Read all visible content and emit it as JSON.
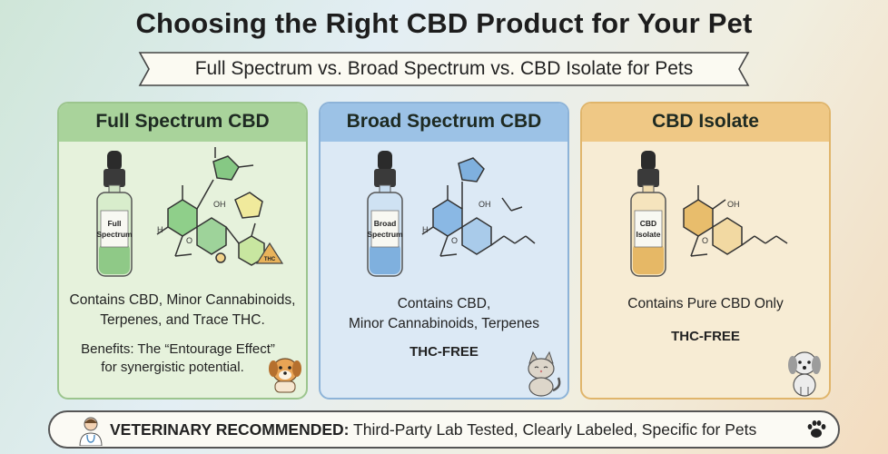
{
  "header": {
    "title": "Choosing the Right CBD Product for Your Pet",
    "subtitle": "Full Spectrum vs. Broad Spectrum vs. CBD Isolate for Pets"
  },
  "cards": [
    {
      "title": "Full Spectrum CBD",
      "bottle_label_1": "Full",
      "bottle_label_2": "Spectrum",
      "desc_1": "Contains CBD, Minor Cannabinoids,",
      "desc_2": "Terpenes, and Trace THC.",
      "benefit_1": "Benefits: The “Entourage Effect”",
      "benefit_2": "for synergistic potential.",
      "warning_badge": "THC",
      "pet": "dog-icon",
      "color": "#a9d39b"
    },
    {
      "title": "Broad Spectrum CBD",
      "bottle_label_1": "Broad",
      "bottle_label_2": "Spectrum",
      "desc_1": "Contains CBD,",
      "desc_2": "Minor Cannabinoids, Terpenes",
      "badge": "THC-FREE",
      "pet": "cat-icon",
      "color": "#9cc2e6"
    },
    {
      "title": "CBD Isolate",
      "bottle_label_1": "CBD",
      "bottle_label_2": "Isolate",
      "desc_1": "Contains Pure CBD Only",
      "badge": "THC-FREE",
      "pet": "puppy-icon",
      "color": "#efc885"
    }
  ],
  "footer": {
    "bold": "VETERINARY RECOMMENDED:",
    "text": " Third-Party Lab Tested, Clearly Labeled, Specific for Pets",
    "icons": [
      "veterinarian-icon",
      "paw-icon"
    ]
  }
}
